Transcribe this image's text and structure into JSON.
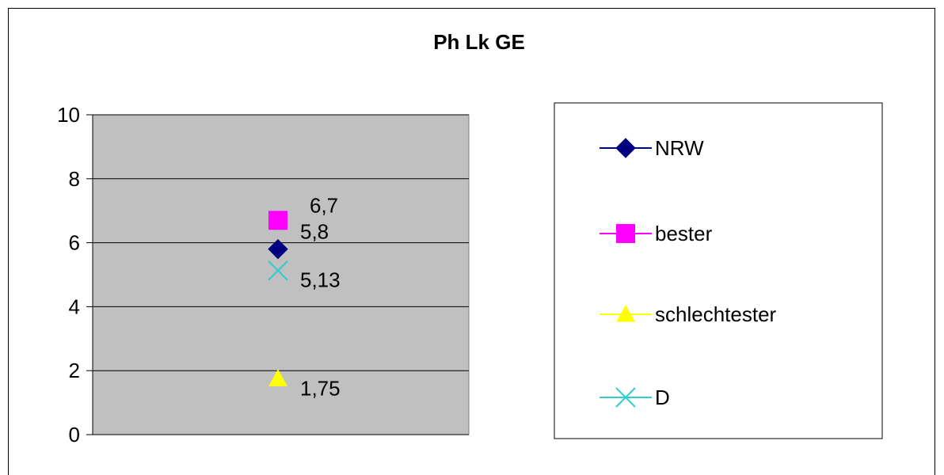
{
  "chart_data": {
    "type": "scatter",
    "title": "Ph Lk GE",
    "xlabel": "",
    "ylabel": "",
    "ylim": [
      0,
      10
    ],
    "yticks": [
      0,
      2,
      4,
      6,
      8,
      10
    ],
    "grid": true,
    "plot_background": "#c0c0c0",
    "legend_position": "right",
    "series": [
      {
        "name": "NRW",
        "marker": "diamond",
        "color": "#000080",
        "value": 5.8,
        "label": "5,8"
      },
      {
        "name": "bester",
        "marker": "square",
        "color": "#ff00ff",
        "value": 6.7,
        "label": "6,7"
      },
      {
        "name": "schlechtester",
        "marker": "triangle",
        "color": "#ffff00",
        "value": 1.75,
        "label": "1,75"
      },
      {
        "name": "D",
        "marker": "x",
        "color": "#33cccc",
        "value": 5.13,
        "label": "5,13"
      }
    ]
  }
}
